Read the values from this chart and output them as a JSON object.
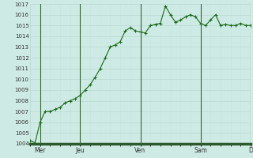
{
  "x_values": [
    0,
    1,
    2,
    3,
    4,
    5,
    6,
    7,
    8,
    9,
    10,
    11,
    12,
    13,
    14,
    15,
    16,
    17,
    18,
    19,
    20,
    21,
    22,
    23,
    24,
    25,
    26,
    27,
    28,
    29,
    30,
    31,
    32,
    33,
    34,
    35,
    36,
    37,
    38,
    39,
    40,
    41,
    42,
    43,
    44
  ],
  "y_values": [
    1004.3,
    1004.1,
    1006.0,
    1007.0,
    1007.0,
    1007.2,
    1007.4,
    1007.8,
    1008.0,
    1008.2,
    1008.5,
    1009.0,
    1009.5,
    1010.2,
    1011.0,
    1012.0,
    1013.0,
    1013.2,
    1013.5,
    1014.5,
    1014.8,
    1014.5,
    1014.4,
    1014.3,
    1015.0,
    1015.1,
    1015.2,
    1016.8,
    1016.0,
    1015.3,
    1015.5,
    1015.8,
    1016.0,
    1015.8,
    1015.2,
    1015.0,
    1015.5,
    1016.0,
    1015.0,
    1015.1,
    1015.0,
    1015.0,
    1015.2,
    1015.0,
    1015.0
  ],
  "day_ticks_x": [
    2,
    10,
    22,
    34,
    44
  ],
  "day_labels": [
    "Mer",
    "Jeu",
    "Ven",
    "Sam",
    "D"
  ],
  "day_vlines": [
    2,
    10,
    22,
    34,
    44
  ],
  "ylim": [
    1004,
    1017
  ],
  "yticks": [
    1004,
    1005,
    1006,
    1007,
    1008,
    1009,
    1010,
    1011,
    1012,
    1013,
    1014,
    1015,
    1016,
    1017
  ],
  "line_color": "#1a6b1a",
  "marker_color": "#1a6b1a",
  "bg_color": "#ceeae4",
  "grid_color": "#b8d8d2",
  "grid_minor_color": "#c8e4de",
  "axis_bottom_color": "#2d5a2d",
  "tick_label_color": "#333333",
  "vline_color": "#336633",
  "figsize": [
    3.2,
    2.0
  ],
  "dpi": 100
}
